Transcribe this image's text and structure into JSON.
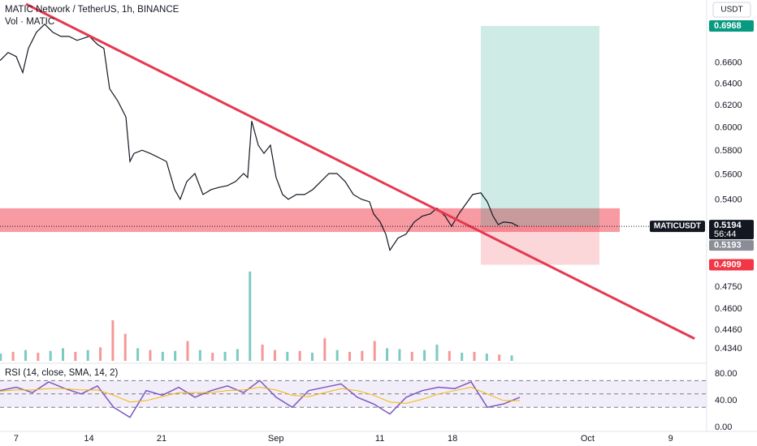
{
  "chart_data": [
    {
      "type": "line",
      "title": "MATIC Network / TetherUS, 1h, BINANCE",
      "currency": "USDT",
      "log_scale": true,
      "grid": false,
      "xlim": [
        -1.56,
        66.46
      ],
      "xticks": [
        {
          "value": 0,
          "label": "7"
        },
        {
          "value": 7,
          "label": "14"
        },
        {
          "value": 14,
          "label": "21"
        },
        {
          "value": 25,
          "label": "Sep"
        },
        {
          "value": 35,
          "label": "11"
        },
        {
          "value": 42,
          "label": "18"
        },
        {
          "value": 55,
          "label": "Oct"
        },
        {
          "value": 63,
          "label": "9"
        }
      ],
      "ylim": [
        0.4264,
        0.7238
      ],
      "yticks": [
        {
          "value": 0.66,
          "label": "0.6600"
        },
        {
          "value": 0.64,
          "label": "0.6400"
        },
        {
          "value": 0.62,
          "label": "0.6200"
        },
        {
          "value": 0.6,
          "label": "0.6000"
        },
        {
          "value": 0.58,
          "label": "0.5800"
        },
        {
          "value": 0.56,
          "label": "0.5600"
        },
        {
          "value": 0.54,
          "label": "0.5400"
        },
        {
          "value": 0.475,
          "label": "0.4750"
        },
        {
          "value": 0.46,
          "label": "0.4600"
        },
        {
          "value": 0.446,
          "label": "0.4460"
        },
        {
          "value": 0.434,
          "label": "0.4340"
        }
      ],
      "series": [
        {
          "name": "MATICUSDT",
          "color": "#131722",
          "x": [
            -1.56,
            -0.78,
            0,
            0.63,
            1.17,
            1.95,
            2.74,
            3.52,
            4.3,
            5.08,
            5.86,
            7.04,
            7.82,
            8.44,
            8.99,
            9.77,
            10.56,
            10.95,
            11.34,
            12.12,
            12.9,
            13.68,
            14.46,
            15.25,
            15.79,
            16.42,
            17.2,
            17.98,
            18.76,
            19.55,
            20.33,
            21.11,
            21.89,
            22.28,
            22.67,
            23.3,
            23.85,
            24.47,
            25.02,
            25.64,
            26.19,
            26.97,
            27.76,
            28.54,
            29.32,
            30.1,
            30.88,
            31.67,
            32.45,
            33.23,
            34.01,
            34.4,
            35.03,
            35.57,
            35.97,
            36.75,
            37.53,
            38.31,
            39.09,
            39.87,
            40.5,
            41.28,
            41.91,
            42.61,
            43.16,
            43.94,
            44.72,
            45.35,
            45.9,
            46.4,
            46.91,
            47.69,
            48.32
          ],
          "values": [
            0.6623,
            0.6702,
            0.6662,
            0.6507,
            0.6742,
            0.6904,
            0.6986,
            0.6904,
            0.6862,
            0.6862,
            0.6822,
            0.6862,
            0.6782,
            0.6742,
            0.6355,
            0.6243,
            0.6097,
            0.5712,
            0.578,
            0.5807,
            0.578,
            0.5746,
            0.5712,
            0.5481,
            0.5404,
            0.5546,
            0.5612,
            0.5442,
            0.5481,
            0.55,
            0.5513,
            0.5546,
            0.5612,
            0.5579,
            0.6061,
            0.585,
            0.578,
            0.585,
            0.5579,
            0.5442,
            0.5404,
            0.5442,
            0.5442,
            0.5481,
            0.5546,
            0.5612,
            0.5612,
            0.5546,
            0.5442,
            0.5404,
            0.5384,
            0.529,
            0.5227,
            0.5135,
            0.5015,
            0.5105,
            0.5135,
            0.5227,
            0.5272,
            0.529,
            0.5334,
            0.5272,
            0.5194,
            0.529,
            0.5353,
            0.5442,
            0.5455,
            0.5384,
            0.5272,
            0.5207,
            0.5227,
            0.522,
            0.5194
          ]
        }
      ],
      "countdown": "56:44",
      "price_marker": 0.5193,
      "volume": {
        "name": "Vol · MATIC",
        "ylim": [
          0,
          400
        ],
        "x": [
          -1.5,
          -0.3,
          0.9,
          2.1,
          3.3,
          4.5,
          5.7,
          6.9,
          8.1,
          9.3,
          10.5,
          11.7,
          12.9,
          14.1,
          15.3,
          16.5,
          17.7,
          18.9,
          20.1,
          21.3,
          22.5,
          23.7,
          24.9,
          26.1,
          27.3,
          28.5,
          29.7,
          30.9,
          32.1,
          33.3,
          34.5,
          35.7,
          36.9,
          38.1,
          39.3,
          40.5,
          41.7,
          42.9,
          44.1,
          45.3,
          46.5,
          47.7
        ],
        "values": [
          8,
          10,
          12,
          9,
          11,
          14,
          10,
          12,
          15,
          45,
          30,
          14,
          12,
          10,
          11,
          22,
          12,
          9,
          10,
          13,
          99,
          18,
          12,
          10,
          11,
          9,
          25,
          12,
          10,
          11,
          22,
          14,
          13,
          10,
          12,
          18,
          11,
          9,
          10,
          8,
          7,
          6
        ],
        "colors": [
          "#26a69a",
          "#ef5350",
          "#26a69a",
          "#ef5350",
          "#26a69a",
          "#26a69a",
          "#ef5350",
          "#26a69a",
          "#ef5350",
          "#ef5350",
          "#ef5350",
          "#26a69a",
          "#ef5350",
          "#26a69a",
          "#26a69a",
          "#ef5350",
          "#26a69a",
          "#ef5350",
          "#26a69a",
          "#26a69a",
          "#26a69a",
          "#ef5350",
          "#ef5350",
          "#26a69a",
          "#ef5350",
          "#26a69a",
          "#ef5350",
          "#26a69a",
          "#ef5350",
          "#ef5350",
          "#ef5350",
          "#26a69a",
          "#26a69a",
          "#ef5350",
          "#26a69a",
          "#26a69a",
          "#ef5350",
          "#26a69a",
          "#ef5350",
          "#26a69a",
          "#ef5350",
          "#26a69a"
        ]
      },
      "zone": {
        "x": [
          -1.56,
          58.1
        ],
        "y": [
          0.5151,
          0.5333
        ],
        "color": "#f23645"
      },
      "trendline": {
        "x": [
          0.94,
          65.3
        ],
        "y": [
          0.7195,
          0.4405
        ],
        "color": "#e53950"
      },
      "position": {
        "x": [
          44.72,
          56.14
        ],
        "entry": 0.5194,
        "target": 0.6968,
        "stop": 0.4909,
        "target_color": "#089981",
        "stop_color": "#f23645"
      }
    },
    {
      "type": "line",
      "title": "RSI (14, close, SMA, 14, 2)",
      "xlim": [
        -1.56,
        66.46
      ],
      "ylim": [
        -3.6,
        91
      ],
      "yticks": [
        {
          "value": 0,
          "label": "0.00"
        },
        {
          "value": 40,
          "label": "40.00"
        },
        {
          "value": 80,
          "label": "80.00"
        }
      ],
      "bands": [
        30,
        50,
        70
      ],
      "band_color": "#7e57c2",
      "x": [
        -1.56,
        0,
        1.56,
        3.13,
        4.69,
        6.26,
        7.82,
        9.38,
        10.95,
        12.51,
        14.07,
        15.64,
        17.2,
        18.76,
        20.33,
        21.89,
        23.45,
        25.02,
        26.58,
        28.15,
        29.71,
        31.27,
        32.84,
        34.4,
        35.97,
        37.53,
        39.09,
        40.66,
        42.22,
        43.79,
        45.35,
        46.91,
        48.48
      ],
      "series": [
        {
          "color": "#7e57c2",
          "values": [
            55,
            60,
            52,
            68,
            58,
            50,
            62,
            30,
            15,
            55,
            48,
            60,
            45,
            55,
            62,
            52,
            70,
            45,
            30,
            55,
            60,
            65,
            45,
            35,
            20,
            45,
            55,
            60,
            58,
            68,
            30,
            35,
            45
          ]
        },
        {
          "color": "#f7b500",
          "values": [
            54,
            56,
            56,
            58,
            58,
            56,
            56,
            48,
            38,
            40,
            46,
            52,
            52,
            52,
            55,
            56,
            60,
            56,
            48,
            46,
            52,
            58,
            55,
            48,
            38,
            36,
            42,
            50,
            55,
            60,
            50,
            40,
            40
          ]
        }
      ]
    }
  ]
}
